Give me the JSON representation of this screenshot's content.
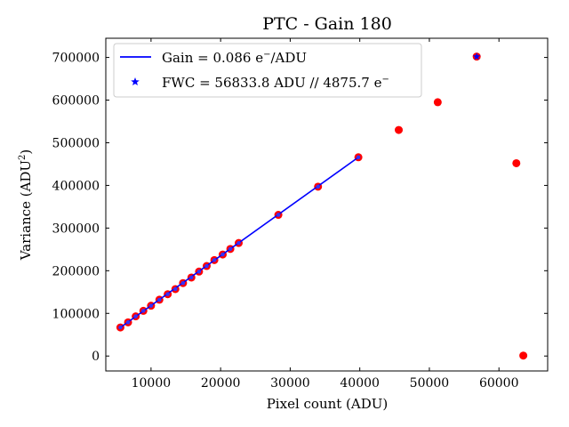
{
  "chart_data": {
    "type": "scatter",
    "title": "PTC - Gain 180",
    "xlabel": "Pixel count (ADU)",
    "ylabel_main": "Variance (ADU",
    "ylabel_sup": "2",
    "ylabel_end": ")",
    "xlim": [
      3500,
      67000
    ],
    "ylim": [
      -35000,
      745000
    ],
    "xticks": [
      10000,
      20000,
      30000,
      40000,
      50000,
      60000
    ],
    "xtick_labels": [
      "10000",
      "20000",
      "30000",
      "40000",
      "50000",
      "60000"
    ],
    "yticks": [
      0,
      100000,
      200000,
      300000,
      400000,
      500000,
      600000,
      700000
    ],
    "ytick_labels": [
      "0",
      "100000",
      "200000",
      "300000",
      "400000",
      "500000",
      "600000",
      "700000"
    ],
    "legend_position": "top-left",
    "legend": {
      "fit_main": "Gain = 0.086 e",
      "fit_sup": "−",
      "fit_end": "/ADU",
      "fwc_main": "FWC = 56833.8 ADU // 4875.7 e",
      "fwc_sup": "−"
    },
    "colors": {
      "points": "#ff0000",
      "fit_line": "#0000ff",
      "fit_points": "#3333ff",
      "fwc_marker": "#0000ff"
    },
    "series": [
      {
        "kind": "measured",
        "x": [
          5600,
          6700,
          7800,
          8900,
          10000,
          11200,
          12400,
          13500,
          14600,
          15800,
          16900,
          18000,
          19100,
          20300,
          21400,
          22600,
          28300,
          34000,
          39800,
          45600,
          51200,
          56800,
          62500,
          63500
        ],
        "y": [
          67000,
          79000,
          93000,
          106000,
          118000,
          132000,
          145000,
          157000,
          171000,
          184000,
          198000,
          211000,
          225000,
          238000,
          251000,
          265000,
          331000,
          397000,
          466000,
          530000,
          595000,
          702000,
          452000,
          1000
        ]
      },
      {
        "kind": "fit",
        "x": [
          5600,
          39800
        ],
        "y": [
          67000,
          466000
        ]
      }
    ],
    "fwc_point": {
      "x": 56800,
      "y": 702000
    }
  }
}
